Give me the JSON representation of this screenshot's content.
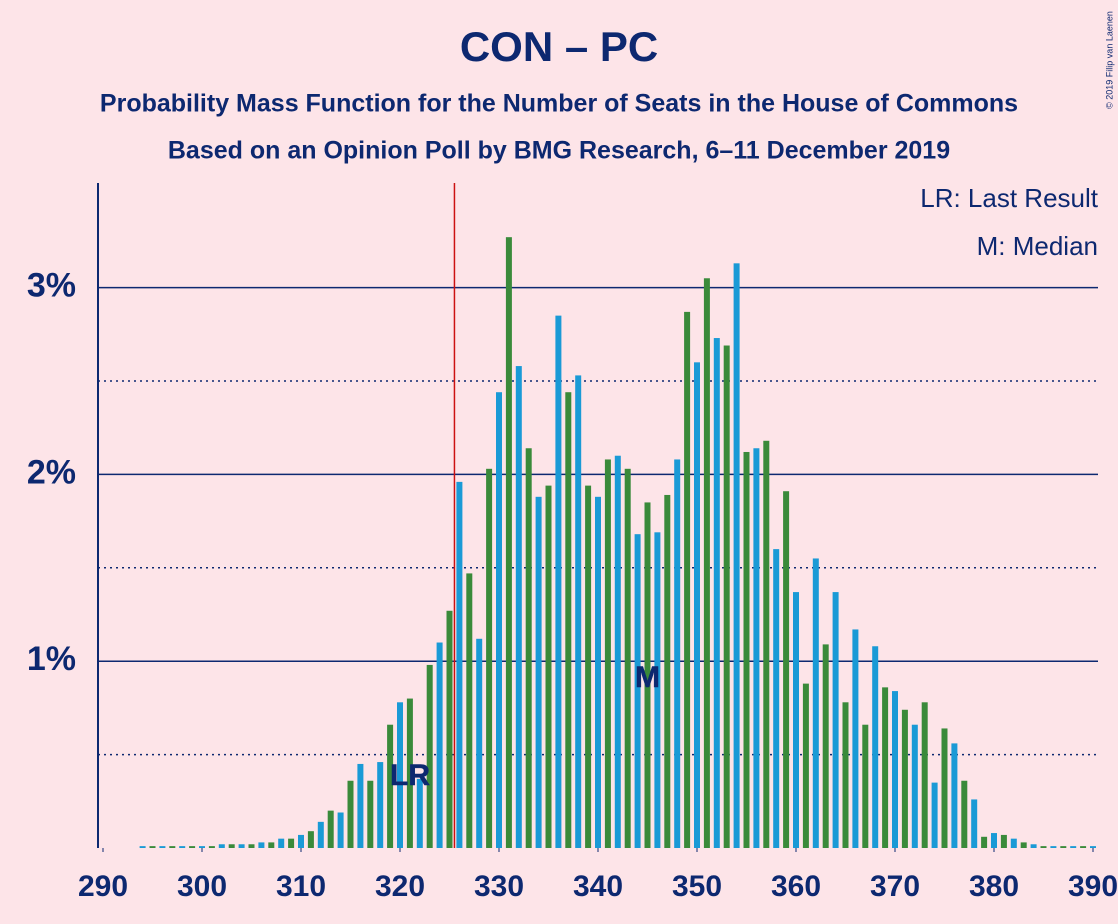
{
  "chart_data": {
    "type": "bar",
    "title": "CON – PC",
    "subtitle": "Probability Mass Function for the Number of Seats in the House of Commons",
    "subtitle2": "Based on an Opinion Poll by BMG Research, 6–11 December 2019",
    "copyright": "© 2019 Filip van Laenen",
    "legend": [
      "LR: Last Result",
      "M: Median"
    ],
    "last_result": {
      "value": 326,
      "label": "LR"
    },
    "median": {
      "value": 345,
      "label": "M"
    },
    "bar_colors": [
      "#1a9ad6",
      "#3a8a3a"
    ],
    "xlim": [
      290,
      390
    ],
    "xticks": [
      290,
      300,
      310,
      320,
      330,
      340,
      350,
      360,
      370,
      380,
      390
    ],
    "ylim": [
      0,
      3.56
    ],
    "yticks": [
      {
        "value": 1,
        "label": "1%"
      },
      {
        "value": 2,
        "label": "2%"
      },
      {
        "value": 3,
        "label": "3%"
      }
    ],
    "minor_yticks": [
      0.5,
      1.5,
      2.5
    ],
    "x": [
      290,
      291,
      292,
      293,
      294,
      295,
      296,
      297,
      298,
      299,
      300,
      301,
      302,
      303,
      304,
      305,
      306,
      307,
      308,
      309,
      310,
      311,
      312,
      313,
      314,
      315,
      316,
      317,
      318,
      319,
      320,
      321,
      322,
      323,
      324,
      325,
      326,
      327,
      328,
      329,
      330,
      331,
      332,
      333,
      334,
      335,
      336,
      337,
      338,
      339,
      340,
      341,
      342,
      343,
      344,
      345,
      346,
      347,
      348,
      349,
      350,
      351,
      352,
      353,
      354,
      355,
      356,
      357,
      358,
      359,
      360,
      361,
      362,
      363,
      364,
      365,
      366,
      367,
      368,
      369,
      370,
      371,
      372,
      373,
      374,
      375,
      376,
      377,
      378,
      379,
      380,
      381,
      382,
      383,
      384,
      385,
      386,
      387,
      388,
      389,
      390
    ],
    "values": [
      0,
      0,
      0,
      0,
      0.01,
      0.01,
      0.01,
      0.01,
      0.01,
      0.01,
      0.01,
      0.01,
      0.02,
      0.02,
      0.02,
      0.02,
      0.03,
      0.03,
      0.05,
      0.05,
      0.07,
      0.09,
      0.14,
      0.2,
      0.19,
      0.36,
      0.45,
      0.36,
      0.46,
      0.66,
      0.78,
      0.8,
      0.37,
      0.98,
      1.1,
      1.27,
      1.96,
      1.47,
      1.12,
      2.03,
      2.44,
      3.27,
      2.58,
      2.14,
      1.88,
      1.94,
      2.85,
      2.44,
      2.53,
      1.94,
      1.88,
      2.08,
      2.1,
      2.03,
      1.68,
      1.85,
      1.69,
      1.89,
      2.08,
      2.87,
      2.6,
      3.05,
      2.73,
      2.69,
      3.13,
      2.12,
      2.14,
      2.18,
      1.6,
      1.91,
      1.37,
      0.88,
      1.55,
      1.09,
      1.37,
      0.78,
      1.17,
      0.66,
      1.08,
      0.86,
      0.84,
      0.74,
      0.66,
      0.78,
      0.35,
      0.64,
      0.56,
      0.36,
      0.26,
      0.06,
      0.08,
      0.07,
      0.05,
      0.03,
      0.02,
      0.01,
      0.01,
      0.01,
      0.01,
      0.01,
      0.01
    ]
  }
}
